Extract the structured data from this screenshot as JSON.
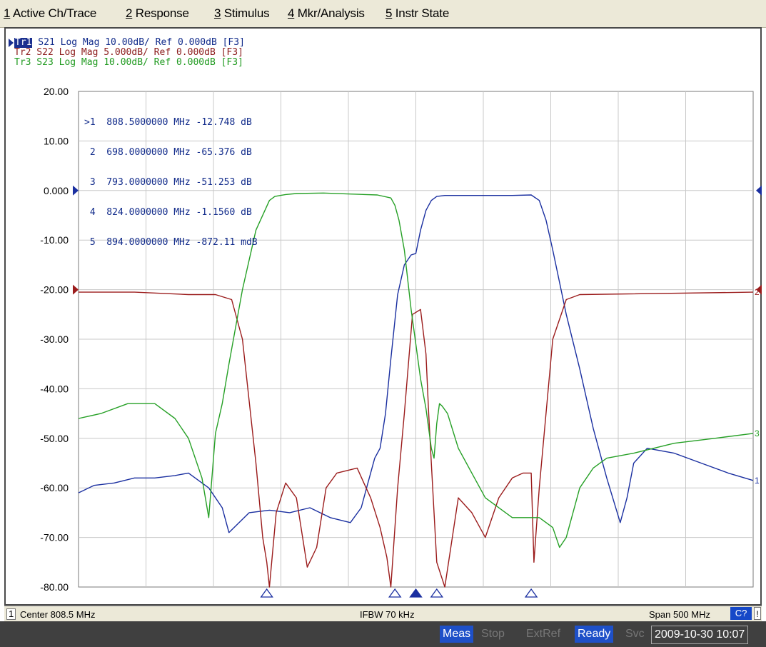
{
  "menu": [
    {
      "key": "1",
      "label": " Active Ch/Trace"
    },
    {
      "key": "2",
      "label": " Response"
    },
    {
      "key": "3",
      "label": " Stimulus"
    },
    {
      "key": "4",
      "label": " Mkr/Analysis"
    },
    {
      "key": "5",
      "label": " Instr State"
    }
  ],
  "traces": [
    {
      "tag": "Tr1",
      "text": " S21 Log Mag 10.00dB/ Ref 0.000dB [F3]",
      "color": "#102a8a"
    },
    {
      "tag": "Tr2",
      "text": " S22 Log Mag 5.000dB/ Ref 0.000dB [F3]",
      "color": "#8b1a1a"
    },
    {
      "tag": "Tr3",
      "text": " S23 Log Mag 10.00dB/ Ref 0.000dB [F3]",
      "color": "#1f9a1f"
    }
  ],
  "marker_table": [
    ">1  808.5000000 MHz -12.748 dB",
    " 2  698.0000000 MHz -65.376 dB",
    " 3  793.0000000 MHz -51.253 dB",
    " 4  824.0000000 MHz -1.1560 dB",
    " 5  894.0000000 MHz -872.11 mdB"
  ],
  "status": {
    "channel": "1",
    "center": "Center 808.5 MHz",
    "ifbw": "IFBW 70 kHz",
    "span": "Span 500 MHz",
    "cal": "C?",
    "excl": "!"
  },
  "taskbar": {
    "meas": "Meas",
    "stop": "Stop",
    "extref": "ExtRef",
    "ready": "Ready",
    "svc": "Svc",
    "datetime": "2009-10-30 10:07"
  },
  "chart_data": {
    "type": "line",
    "xlabel": "",
    "ylabel": "",
    "x_center_mhz": 808.5,
    "x_span_mhz": 500,
    "xlim": [
      558.5,
      1058.5
    ],
    "ylim": [
      -80,
      20
    ],
    "y_ticks": [
      "20.00",
      "10.00",
      "0.000",
      "-10.00",
      "-20.00",
      "-30.00",
      "-40.00",
      "-50.00",
      "-60.00",
      "-70.00",
      "-80.00"
    ],
    "grid": true,
    "series": [
      {
        "name": "Tr1",
        "color": "#1a2fa0",
        "end_label": "1",
        "x": [
          558.5,
          570,
          585,
          600,
          615,
          630,
          640,
          655,
          665,
          670,
          685,
          700,
          715,
          730,
          745,
          760,
          768,
          772,
          778,
          782,
          786,
          790,
          795,
          800,
          805,
          808.5,
          812,
          816,
          820,
          824,
          830,
          840,
          860,
          880,
          894,
          900,
          905,
          910,
          920,
          930,
          940,
          950,
          960,
          965,
          970,
          980,
          1000,
          1020,
          1040,
          1058.5
        ],
        "y": [
          -61,
          -59.5,
          -59,
          -58,
          -58,
          -57.5,
          -57,
          -60,
          -64,
          -69,
          -65,
          -64.5,
          -65,
          -64,
          -66,
          -67,
          -64,
          -60,
          -54,
          -52,
          -45,
          -34,
          -21,
          -15,
          -13,
          -12.7,
          -8,
          -4,
          -2,
          -1.2,
          -1.0,
          -1.0,
          -1.0,
          -1.0,
          -0.9,
          -2,
          -6,
          -12,
          -25,
          -36,
          -48,
          -58,
          -67,
          -62,
          -55,
          -52,
          -53,
          -55,
          -57,
          -58.5
        ]
      },
      {
        "name": "Tr2",
        "color": "#9b1c1c",
        "end_label": "2",
        "x": [
          558.5,
          600,
          640,
          660,
          672,
          680,
          690,
          695,
          698,
          700,
          705,
          712,
          720,
          728,
          735,
          742,
          750,
          765,
          770,
          775,
          782,
          787,
          790,
          795,
          800,
          806,
          812,
          816,
          818,
          820,
          824,
          830,
          840,
          850,
          860,
          870,
          880,
          888,
          894,
          896,
          900,
          910,
          920,
          930,
          1058.5
        ],
        "y": [
          -20.5,
          -20.5,
          -21,
          -21,
          -22,
          -30,
          -55,
          -70,
          -75,
          -80,
          -65,
          -59,
          -62,
          -76,
          -72,
          -60,
          -57,
          -56,
          -59,
          -62,
          -68,
          -74,
          -80,
          -60,
          -45,
          -25,
          -24,
          -33,
          -45,
          -55,
          -75,
          -80,
          -62,
          -65,
          -70,
          -62,
          -58,
          -57,
          -57,
          -75,
          -60,
          -30,
          -22,
          -21,
          -20.5
        ]
      },
      {
        "name": "Tr3",
        "color": "#26a026",
        "end_label": "3",
        "x": [
          558.5,
          575,
          595,
          615,
          630,
          640,
          650,
          655,
          660,
          665,
          670,
          680,
          690,
          700,
          704,
          708,
          712,
          720,
          740,
          760,
          780,
          790,
          793,
          796,
          800,
          805,
          808.5,
          812,
          816,
          820,
          822,
          824,
          826,
          828,
          832,
          840,
          850,
          860,
          880,
          900,
          910,
          915,
          920,
          930,
          940,
          950,
          970,
          1000,
          1030,
          1058.5
        ],
        "y": [
          -46,
          -45,
          -43,
          -43,
          -46,
          -50,
          -58,
          -66,
          -49,
          -43,
          -35,
          -20,
          -8,
          -2,
          -1.2,
          -1.0,
          -0.8,
          -0.6,
          -0.5,
          -0.7,
          -0.9,
          -1.5,
          -3,
          -6,
          -12,
          -24,
          -31,
          -38,
          -44,
          -52,
          -54,
          -47,
          -43,
          -43.5,
          -45,
          -52,
          -57,
          -62,
          -66,
          -66,
          -68,
          -72,
          -70,
          -60,
          -56,
          -54,
          -53,
          -51,
          -50,
          -49
        ]
      }
    ],
    "markers": [
      {
        "n": "1",
        "x_mhz": 808.5,
        "value": "-12.748 dB"
      },
      {
        "n": "2",
        "x_mhz": 698.0,
        "value": "-65.376 dB"
      },
      {
        "n": "3",
        "x_mhz": 793.0,
        "value": "-51.253 dB"
      },
      {
        "n": "4",
        "x_mhz": 824.0,
        "value": "-1.1560 dB"
      },
      {
        "n": "5",
        "x_mhz": 894.0,
        "value": "-872.11 mdB"
      }
    ],
    "ref_level": "0.000",
    "ref_color": "#1a2fa0"
  }
}
